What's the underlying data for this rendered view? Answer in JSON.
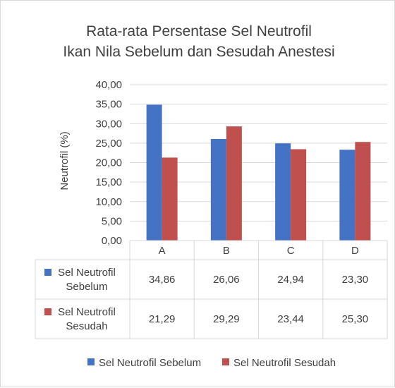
{
  "chart_data": {
    "type": "bar",
    "title": [
      "Rata-rata Persentase Sel Neutrofil",
      "Ikan Nila Sebelum dan Sesudah Anestesi"
    ],
    "ylabel": "Neutrofil (%)",
    "xlabel": "",
    "categories": [
      "A",
      "B",
      "C",
      "D"
    ],
    "ylim": [
      0,
      40
    ],
    "yticks": [
      "0,00",
      "5,00",
      "10,00",
      "15,00",
      "20,00",
      "25,00",
      "30,00",
      "35,00",
      "40,00"
    ],
    "grid": true,
    "legend": "bottom",
    "data_table": true,
    "series": [
      {
        "name": "Sel Neutrofil Sebelum",
        "row_label": [
          "Sel Neutrofil",
          "Sebelum"
        ],
        "color": "#4472c4",
        "values": [
          34.86,
          26.06,
          24.94,
          23.3
        ],
        "labels": [
          "34,86",
          "26,06",
          "24,94",
          "23,30"
        ]
      },
      {
        "name": "Sel Neutrofil Sesudah",
        "row_label": [
          "Sel Neutrofil",
          "Sesudah"
        ],
        "color": "#c0504d",
        "values": [
          21.29,
          29.29,
          23.44,
          25.3
        ],
        "labels": [
          "21,29",
          "29,29",
          "23,44",
          "25,30"
        ]
      }
    ]
  }
}
